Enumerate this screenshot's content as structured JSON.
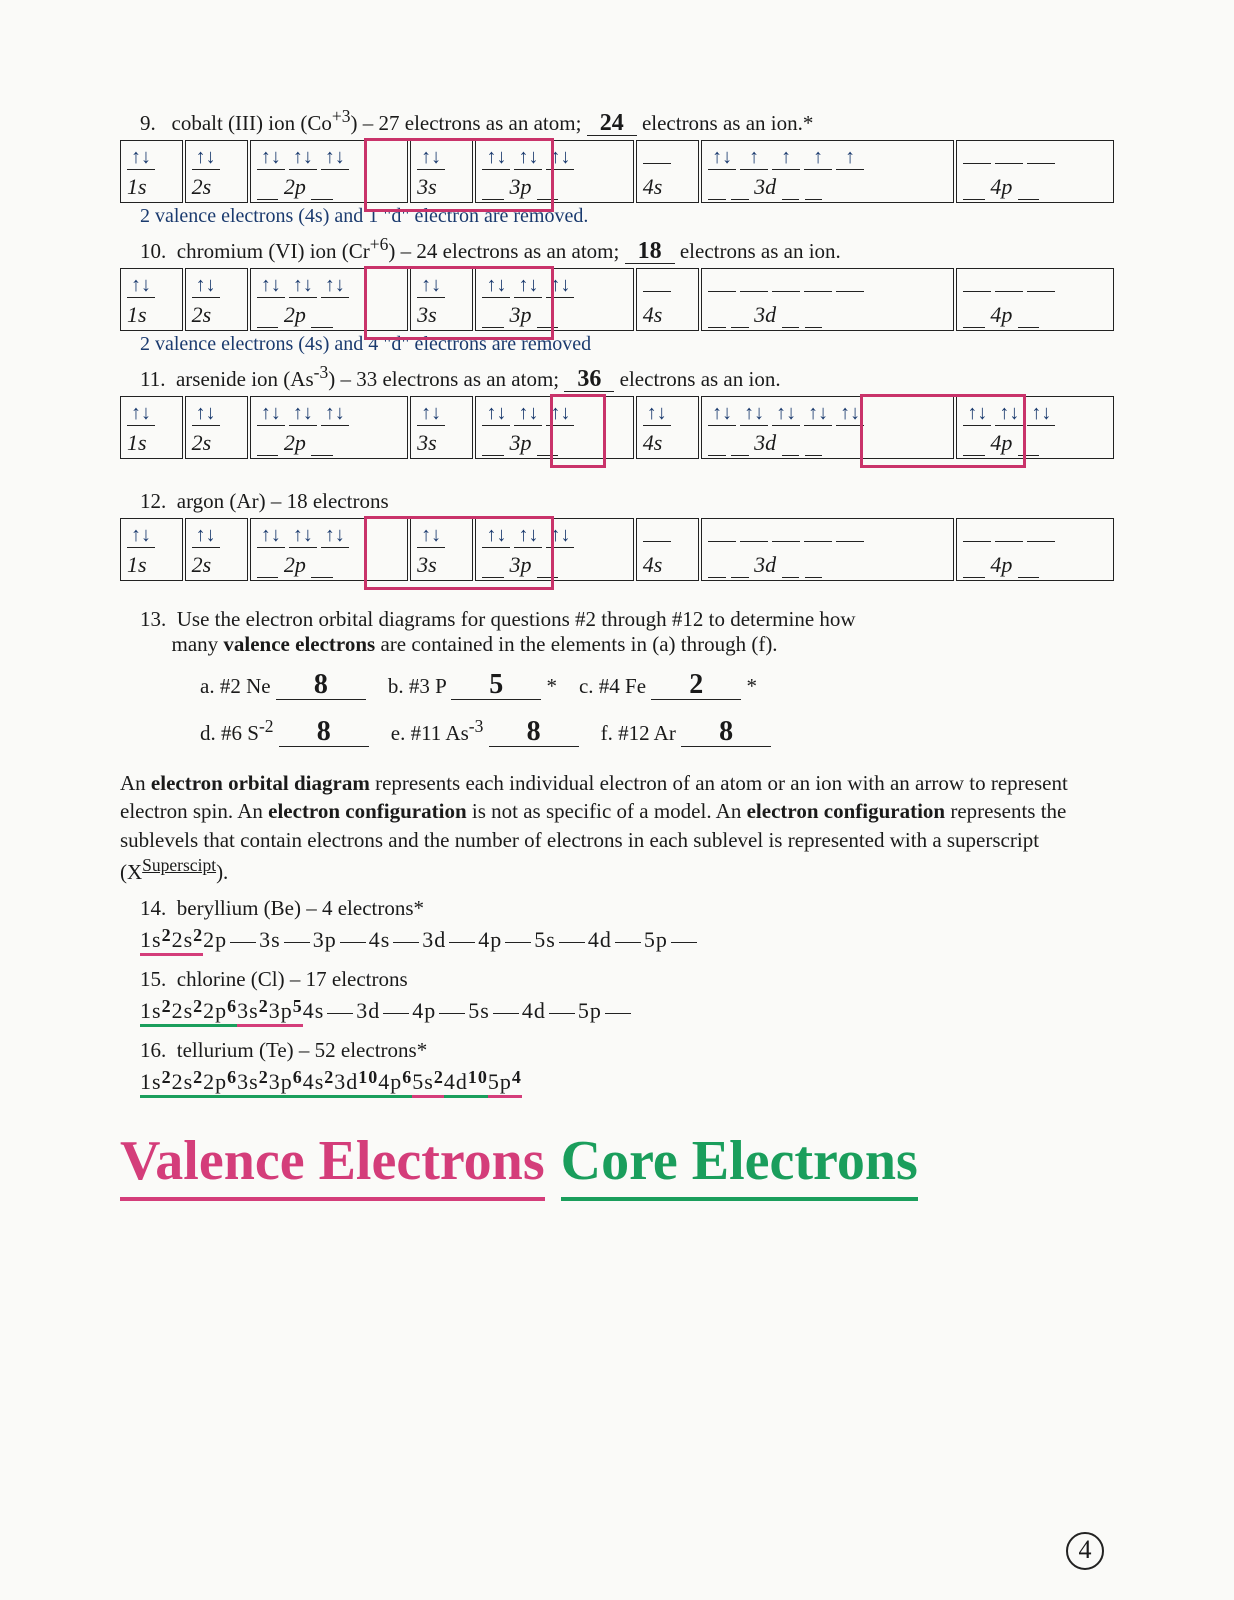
{
  "q9": {
    "num": "9.",
    "text_a": "cobalt (III) ion (Co",
    "charge": "+3",
    "text_b": ") – 27 electrons as an atom;",
    "answer": "24",
    "text_c": "electrons as an ion.*"
  },
  "q10": {
    "num": "10.",
    "text_a": "chromium (VI) ion (Cr",
    "charge": "+6",
    "text_b": ") – 24 electrons as an atom;",
    "answer": "18",
    "text_c": "electrons as an ion."
  },
  "q11": {
    "num": "11.",
    "text_a": "arsenide ion (As",
    "charge": "-3",
    "text_b": ") – 33 electrons as an atom;",
    "answer": "36",
    "text_c": "electrons as an ion."
  },
  "q12": {
    "num": "12.",
    "text": "argon (Ar) – 18 electrons"
  },
  "note9": "2 valence electrons (4s) and 1 \"d\" electron are removed.",
  "note10": "2 valence electrons (4s) and 4 \"d\" electrons are removed",
  "orbitals": {
    "labels": [
      "1s",
      "2s",
      "2p",
      "3s",
      "3p",
      "4s",
      "3d",
      "4p"
    ],
    "q9": {
      "1s": "↑↓",
      "2s": "↑↓",
      "2p": [
        "↑↓",
        "↑↓",
        "↑↓"
      ],
      "3s": "↑↓",
      "3p": [
        "↑↓",
        "↑↓",
        "↑↓"
      ],
      "4s": "",
      "3d": [
        "↑↓",
        "↑",
        "↑",
        "↑",
        "↑"
      ],
      "4p": [
        "",
        "",
        ""
      ]
    },
    "q10": {
      "1s": "↑↓",
      "2s": "↑↓",
      "2p": [
        "↑↓",
        "↑↓",
        "↑↓"
      ],
      "3s": "↑↓",
      "3p": [
        "↑↓",
        "↑↓",
        "↑↓"
      ],
      "4s": "",
      "3d": [
        "",
        "",
        "",
        "",
        ""
      ],
      "4p": [
        "",
        "",
        ""
      ]
    },
    "q11": {
      "1s": "↑↓",
      "2s": "↑↓",
      "2p": [
        "↑↓",
        "↑↓",
        "↑↓"
      ],
      "3s": "↑↓",
      "3p": [
        "↑↓",
        "↑↓",
        "↑↓"
      ],
      "4s": "↑↓",
      "3d": [
        "↑↓",
        "↑↓",
        "↑↓",
        "↑↓",
        "↑↓"
      ],
      "4p": [
        "↑↓",
        "↑↓",
        "↑↓"
      ]
    },
    "q12": {
      "1s": "↑↓",
      "2s": "↑↓",
      "2p": [
        "↑↓",
        "↑↓",
        "↑↓"
      ],
      "3s": "↑↓",
      "3p": [
        "↑↓",
        "↑↓",
        "↑↓"
      ],
      "4s": "",
      "3d": [
        "",
        "",
        "",
        "",
        ""
      ],
      "4p": [
        "",
        "",
        ""
      ]
    }
  },
  "q13": {
    "num": "13.",
    "line1": "Use the electron orbital diagrams for questions #2 through #12 to determine how",
    "line2": "many ",
    "bold": "valence electrons",
    "line3": " are contained in the elements in (a) through (f).",
    "subs": [
      {
        "l": "a. #2 Ne",
        "a": "8",
        "star": ""
      },
      {
        "l": "b. #3 P",
        "a": "5",
        "star": "*"
      },
      {
        "l": "c. #4 Fe",
        "a": "2",
        "star": "*"
      },
      {
        "l": "d. #6 S",
        "sup": "-2",
        "a": "8",
        "star": ""
      },
      {
        "l": "e. #11 As",
        "sup": "-3",
        "a": "8",
        "star": ""
      },
      {
        "l": "f. #12 Ar",
        "a": "8",
        "star": ""
      }
    ]
  },
  "para": {
    "t1": "An ",
    "b1": "electron orbital diagram",
    "t2": " represents each individual electron of an atom or an ion with an arrow to represent electron spin.  An ",
    "b2": "electron configuration",
    "t3": " is not as specific of a model.  An ",
    "b3": "electron configuration",
    "t4": " represents the sublevels that contain electrons and the number of electrons in each sublevel is represented with a superscript (X",
    "sup": "Superscipt",
    "t5": ")."
  },
  "q14": {
    "num": "14.",
    "text": "beryllium (Be) – 4 electrons*",
    "cfg": [
      [
        "1s",
        "2",
        "r"
      ],
      [
        "2s",
        "2",
        "r"
      ],
      [
        "2p",
        "",
        ""
      ],
      [
        "3s",
        "",
        ""
      ],
      [
        "3p",
        "",
        ""
      ],
      [
        "4s",
        "",
        ""
      ],
      [
        "3d",
        "",
        ""
      ],
      [
        "4p",
        "",
        ""
      ],
      [
        "5s",
        "",
        ""
      ],
      [
        "4d",
        "",
        ""
      ],
      [
        "5p",
        "",
        ""
      ]
    ]
  },
  "q15": {
    "num": "15.",
    "text": "chlorine (Cl) – 17 electrons",
    "cfg": [
      [
        "1s",
        "2",
        "g"
      ],
      [
        "2s",
        "2",
        "g"
      ],
      [
        "2p",
        "6",
        "g"
      ],
      [
        "3s",
        "2",
        "r"
      ],
      [
        "3p",
        "5",
        "r"
      ],
      [
        "4s",
        "",
        ""
      ],
      [
        "3d",
        "",
        ""
      ],
      [
        "4p",
        "",
        ""
      ],
      [
        "5s",
        "",
        ""
      ],
      [
        "4d",
        "",
        ""
      ],
      [
        "5p",
        "",
        ""
      ]
    ]
  },
  "q16": {
    "num": "16.",
    "text": "tellurium (Te) – 52 electrons*",
    "cfg": [
      [
        "1s",
        "2",
        "g"
      ],
      [
        "2s",
        "2",
        "g"
      ],
      [
        "2p",
        "6",
        "g"
      ],
      [
        "3s",
        "2",
        "g"
      ],
      [
        "3p",
        "6",
        "g"
      ],
      [
        "4s",
        "2",
        "g"
      ],
      [
        "3d",
        "10",
        "g"
      ],
      [
        "4p",
        "6",
        "g"
      ],
      [
        "5s",
        "2",
        "r"
      ],
      [
        "4d",
        "10",
        "g"
      ],
      [
        "5p",
        "4",
        "r"
      ]
    ]
  },
  "footer": {
    "valence": "Valence Electrons",
    "core": "Core Electrons",
    "page": "4"
  }
}
